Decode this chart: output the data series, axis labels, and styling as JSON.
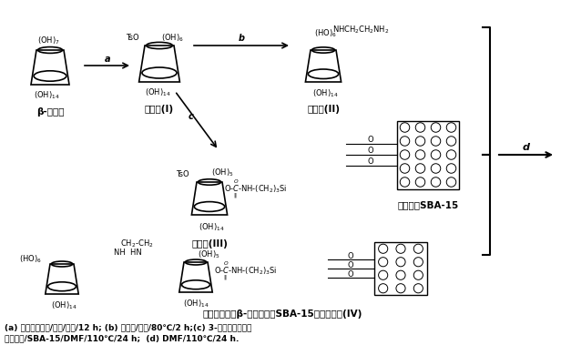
{
  "title": "",
  "bg_color": "#ffffff",
  "fig_width": 6.16,
  "fig_height": 3.79,
  "dpi": 100,
  "caption_line1": "(a) 对甲苯磺酸氯/吡啶/室温/12 h; (b) 乙二胺/吡啶/80℃/2 h;(c) 3-异氰酸丙基三乙",
  "caption_line2": "氧基硅烷/SBA-15/DMF/110℃/24 h;  (d) DMF/110℃/24 h.",
  "beta_cd_label": "β-环糊精",
  "intermediate1_label": "中间体(I)",
  "intermediate2_label": "中间体(II)",
  "intermediate3_label": "中间体(III)",
  "sba15_label": "有序介孔SBA-15",
  "product_label": "乙二胺桥联双β-环糊精键合SBA-15手性固定相(IV)",
  "step_a": "a",
  "step_b": "b",
  "step_c": "c",
  "step_d": "d"
}
